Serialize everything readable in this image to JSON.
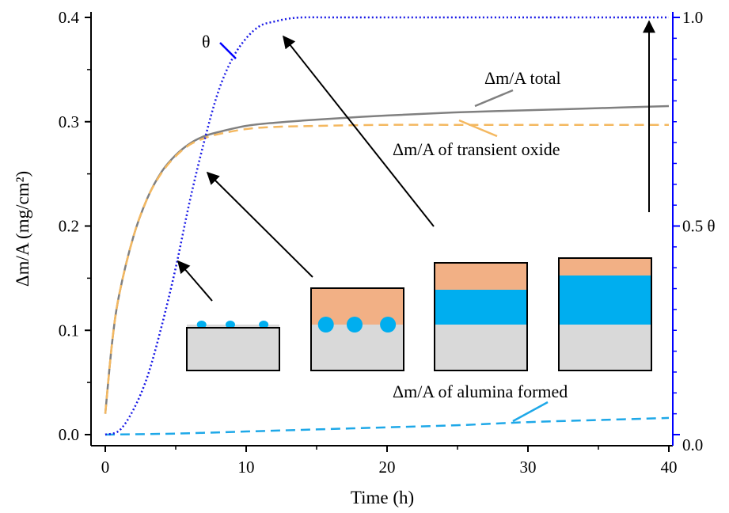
{
  "chart_data": {
    "type": "line",
    "xlabel": "Time (h)",
    "ylabel": "Δm/A (mg/cm²)",
    "y2label": "θ",
    "xlim": [
      0,
      40
    ],
    "ylim": [
      0,
      0.4
    ],
    "y2lim": [
      0,
      1
    ],
    "x_ticks": [
      0,
      10,
      20,
      30,
      40
    ],
    "y_ticks": [
      0.0,
      0.1,
      0.2,
      0.3,
      0.4
    ],
    "y2_ticks": [
      0.0,
      0.5,
      1.0
    ],
    "x_tick_labels": [
      "0",
      "10",
      "20",
      "30",
      "40"
    ],
    "y_tick_labels": [
      "0.0",
      "0.1",
      "0.2",
      "0.3",
      "0.4"
    ],
    "y2_tick_labels": [
      "0.0",
      "0.5",
      "1.0"
    ],
    "y2_mid_label": "0.5 θ",
    "grid": false,
    "series": [
      {
        "name": "Δm/A total",
        "axis": "left",
        "style": "solid",
        "color": "#808080",
        "x": [
          0,
          0.5,
          1,
          2,
          3,
          4,
          5,
          6,
          7,
          8,
          10,
          12,
          15,
          20,
          25,
          30,
          35,
          40
        ],
        "y": [
          0.02,
          0.09,
          0.135,
          0.19,
          0.227,
          0.252,
          0.268,
          0.279,
          0.286,
          0.29,
          0.296,
          0.299,
          0.302,
          0.306,
          0.309,
          0.311,
          0.313,
          0.315
        ]
      },
      {
        "name": "Δm/A of transient oxide",
        "axis": "left",
        "style": "dashed",
        "color": "#f4b860",
        "x": [
          0,
          0.5,
          1,
          2,
          3,
          4,
          5,
          6,
          7,
          8,
          10,
          12,
          15,
          20,
          25,
          30,
          35,
          40
        ],
        "y": [
          0.02,
          0.09,
          0.135,
          0.19,
          0.227,
          0.251,
          0.267,
          0.278,
          0.284,
          0.288,
          0.293,
          0.295,
          0.296,
          0.297,
          0.297,
          0.297,
          0.297,
          0.297
        ]
      },
      {
        "name": "Δm/A of alumina formed",
        "axis": "left",
        "style": "dashed",
        "color": "#1ea8e8",
        "x": [
          0,
          5,
          10,
          15,
          20,
          25,
          30,
          35,
          40
        ],
        "y": [
          0.0,
          0.001,
          0.003,
          0.005,
          0.007,
          0.009,
          0.012,
          0.014,
          0.016
        ]
      },
      {
        "name": "θ",
        "axis": "right",
        "style": "dotted",
        "color": "#1a1ae6",
        "x": [
          0,
          1,
          2,
          3,
          4,
          5,
          6,
          7,
          8,
          9,
          10,
          11,
          12,
          13,
          14,
          16,
          20,
          30,
          40
        ],
        "y": [
          0.0,
          0.01,
          0.06,
          0.14,
          0.26,
          0.4,
          0.56,
          0.7,
          0.82,
          0.9,
          0.95,
          0.98,
          0.99,
          0.997,
          1.0,
          1.0,
          1.0,
          1.0,
          1.0
        ]
      }
    ],
    "annotations": {
      "total": "Δm/A total",
      "transient": "Δm/A of transient oxide",
      "alumina": "Δm/A of alumina formed",
      "theta": "θ"
    },
    "insets": [
      {
        "stage": 1,
        "top_fraction": 0.27,
        "alumina": "particles",
        "particle_size": "small"
      },
      {
        "stage": 2,
        "top_fraction": 0.52,
        "alumina": "particles",
        "particle_size": "large"
      },
      {
        "stage": 3,
        "top_fraction": 0.68,
        "alumina": "layer",
        "layer_fraction": 0.22
      },
      {
        "stage": 4,
        "top_fraction": 0.71,
        "alumina": "layer",
        "layer_fraction": 0.31
      }
    ],
    "colors": {
      "transient_oxide": "#f2b085",
      "alumina": "#00aeef",
      "substrate": "#d9d9d9",
      "right_axis": "#0000ff"
    }
  }
}
